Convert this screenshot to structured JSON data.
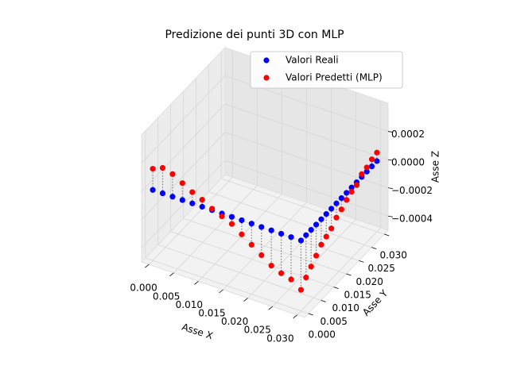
{
  "chart_data": {
    "type": "scatter3d",
    "title": "Predizione dei punti 3D con MLP",
    "xlabel": "Asse X",
    "ylabel": "Asse Y",
    "zlabel": "Asse Z",
    "xlim": [
      -0.0015,
      0.0315
    ],
    "ylim": [
      -0.0015,
      0.0315
    ],
    "zlim": [
      -0.0005,
      0.0004
    ],
    "xticks": [
      {
        "value": 0,
        "label": "0.000"
      },
      {
        "value": 0.005,
        "label": "0.005"
      },
      {
        "value": 0.01,
        "label": "0.010"
      },
      {
        "value": 0.015,
        "label": "0.015"
      },
      {
        "value": 0.02,
        "label": "0.020"
      },
      {
        "value": 0.025,
        "label": "0.025"
      },
      {
        "value": 0.03,
        "label": "0.030"
      }
    ],
    "yticks": [
      {
        "value": 0,
        "label": "0.000"
      },
      {
        "value": 0.005,
        "label": "0.005"
      },
      {
        "value": 0.01,
        "label": "0.010"
      },
      {
        "value": 0.015,
        "label": "0.015"
      },
      {
        "value": 0.02,
        "label": "0.020"
      },
      {
        "value": 0.025,
        "label": "0.025"
      },
      {
        "value": 0.03,
        "label": "0.030"
      }
    ],
    "zticks": [
      {
        "value": -0.0004,
        "label": "−0.0004"
      },
      {
        "value": -0.0002,
        "label": "−0.0002"
      },
      {
        "value": 0,
        "label": "0.0000"
      },
      {
        "value": 0.0002,
        "label": "0.0002"
      }
    ],
    "grid": true,
    "legend": "upper right",
    "x": [
      0,
      0.002,
      0.004,
      0.006,
      0.008,
      0.01,
      0.012,
      0.014,
      0.016,
      0.018,
      0.02,
      0.022,
      0.024,
      0.026,
      0.028,
      0.03,
      0.03,
      0.03,
      0.03,
      0.03,
      0.03,
      0.03,
      0.03,
      0.03,
      0.03,
      0.03,
      0.03,
      0.03,
      0.03,
      0.03,
      0.03
    ],
    "y": [
      0,
      0,
      0,
      0,
      0,
      0,
      0,
      0,
      0,
      0,
      0,
      0,
      0,
      0,
      0,
      0,
      0.002,
      0.004,
      0.006,
      0.008,
      0.01,
      0.012,
      0.014,
      0.016,
      0.018,
      0.02,
      0.022,
      0.024,
      0.026,
      0.028,
      0.03
    ],
    "series": [
      {
        "name": "Valori Reali",
        "color": "#0000ff",
        "values": [
          0,
          0,
          0,
          0,
          0,
          0,
          0,
          0,
          0,
          0,
          0,
          0,
          0,
          0,
          0,
          0,
          0,
          0,
          0,
          0,
          0,
          0,
          0,
          0,
          0,
          0,
          0,
          0,
          0,
          0,
          0
        ]
      },
      {
        "name": "Valori Predetti (MLP)",
        "color": "#ff0000",
        "values": [
          0.00015,
          0.00018,
          0.00016,
          0.00012,
          8e-05,
          5e-05,
          1e-05,
          -2e-05,
          -5e-05,
          -0.0001,
          -0.00015,
          -0.0002,
          -0.00025,
          -0.00028,
          -0.0003,
          -0.00035,
          -0.0003,
          -0.00026,
          -0.00022,
          -0.00018,
          -0.00016,
          -0.00014,
          -0.0001,
          -8e-05,
          -5e-05,
          -3e-05,
          -2e-05,
          2e-05,
          3e-05,
          5e-05,
          6e-05
        ]
      }
    ]
  }
}
